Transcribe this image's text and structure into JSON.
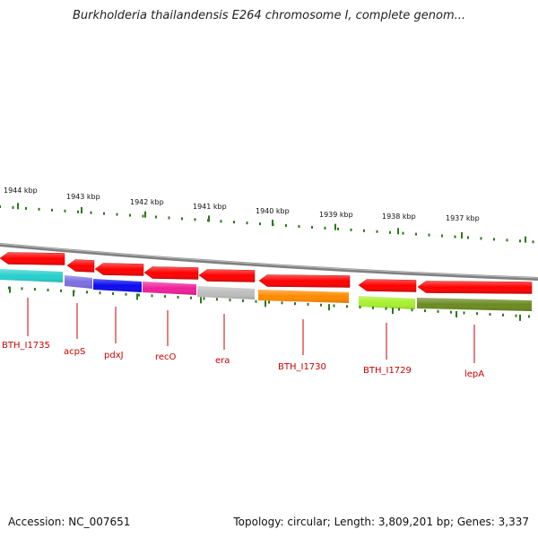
{
  "title": "Burkholderia thailandensis E264 chromosome I, complete genom...",
  "footer": {
    "accession": "Accession: NC_007651",
    "summary": "Topology: circular; Length: 3,809,201 bp; Genes: 3,337"
  },
  "colors": {
    "backbone": "#808080",
    "tick": "#2a7a1a",
    "gene_arrow": "#ff0000",
    "label": "#cc0000"
  },
  "ruler": [
    {
      "label": "1944 kbp"
    },
    {
      "label": "1943 kbp"
    },
    {
      "label": "1942 kbp"
    },
    {
      "label": "1941 kbp"
    },
    {
      "label": "1940 kbp"
    },
    {
      "label": "1939 kbp"
    },
    {
      "label": "1938 kbp"
    },
    {
      "label": "1937 kbp"
    }
  ],
  "genes": [
    {
      "name": "BTH_I1735",
      "color": "#28d0cc"
    },
    {
      "name": "acpS",
      "color": "#7b6fe0"
    },
    {
      "name": "pdxJ",
      "color": "#0a0af0"
    },
    {
      "name": "recO",
      "color": "#f0209a"
    },
    {
      "name": "era",
      "color": "#bdbdbd"
    },
    {
      "name": "BTH_I1730",
      "color": "#ff8a00"
    },
    {
      "name": "BTH_I1729",
      "color": "#a8f030"
    },
    {
      "name": "lepA",
      "color": "#6b8a22"
    }
  ]
}
